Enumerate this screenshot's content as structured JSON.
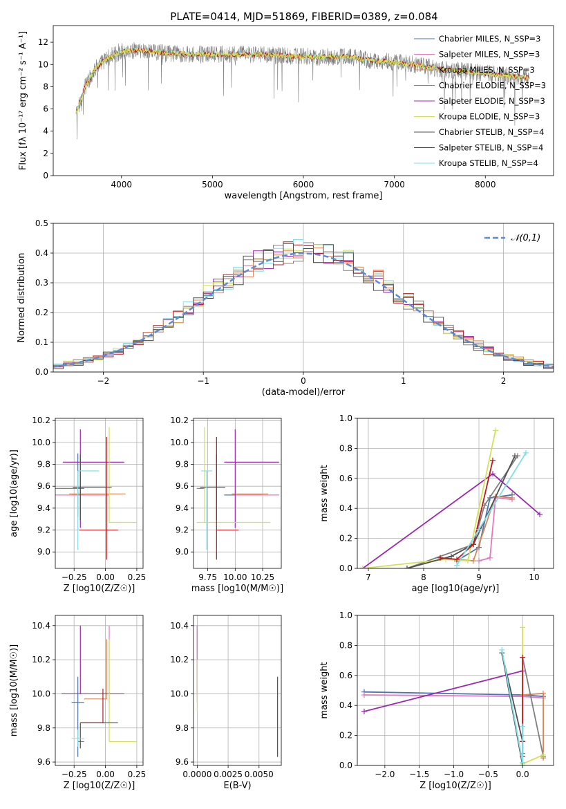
{
  "figure_title": "PLATE=0414, MJD=51869, FIBERID=0389, z=0.084",
  "models": [
    {
      "name": "Chabrier MILES",
      "nssp": "3",
      "color": "#4c72b0"
    },
    {
      "name": "Salpeter MILES",
      "nssp": "3",
      "color": "#e377c2"
    },
    {
      "name": "Kroupa MILES",
      "nssp": "3",
      "color": "#dd8452"
    },
    {
      "name": "Chabrier ELODIE",
      "nssp": "3",
      "color": "#7f7f7f"
    },
    {
      "name": "Salpeter ELODIE",
      "nssp": "3",
      "color": "#9c27b0"
    },
    {
      "name": "Kroupa ELODIE",
      "nssp": "3",
      "color": "#d4e157"
    },
    {
      "name": "Chabrier STELIB",
      "nssp": "4",
      "color": "#505050"
    },
    {
      "name": "Salpeter STELIB",
      "nssp": "4",
      "color": "#b71c1c"
    },
    {
      "name": "Kroupa STELIB",
      "nssp": "4",
      "color": "#80deea"
    }
  ],
  "chart_data": [
    {
      "id": "spectrum",
      "type": "line",
      "xlabel": "wavelength [Angstrom, rest frame]",
      "ylabel": "Flux [fλ 10⁻¹⁷ erg cm⁻² s⁻¹ A⁻¹]",
      "xlim": [
        3250,
        8750
      ],
      "ylim": [
        0,
        13.5
      ],
      "xticks": [
        4000,
        5000,
        6000,
        7000,
        8000
      ],
      "yticks": [
        0,
        2,
        4,
        6,
        8,
        10,
        12
      ],
      "x_data_range": [
        3500,
        8480
      ],
      "series": [
        {
          "name": "Chabrier ELODIE N_SSP=3",
          "role": "observed spectrum (grey)",
          "color": "#808080"
        },
        {
          "name": "Kroupa STELIB N_SSP=4",
          "color": "#80deea"
        },
        {
          "name": "Salpeter STELIB N_SSP=4",
          "color": "#b71c1c"
        },
        {
          "name": "Kroupa ELODIE N_SSP=3",
          "color": "#d4e157"
        }
      ],
      "continuum_profile": {
        "x": [
          3500,
          3600,
          3700,
          3800,
          3900,
          4000,
          4200,
          4500,
          5000,
          5500,
          6000,
          6500,
          6800,
          7000,
          7200,
          7500,
          8000,
          8480
        ],
        "y": [
          5.5,
          8.0,
          9.5,
          10.3,
          10.8,
          11.2,
          11.3,
          11.0,
          10.9,
          10.9,
          10.7,
          10.7,
          10.3,
          10.2,
          10.0,
          9.6,
          9.2,
          8.8
        ]
      },
      "legend_location": "upper right"
    },
    {
      "id": "residual-histogram",
      "type": "line",
      "style": "step histogram",
      "xlabel": "(data-model)/error",
      "ylabel": "Normed distribution",
      "xlim": [
        -2.5,
        2.5
      ],
      "ylim": [
        0,
        0.5
      ],
      "xticks": [
        -2,
        -1,
        0,
        1,
        2
      ],
      "yticks": [
        0,
        0.1,
        0.2,
        0.3,
        0.4,
        0.5
      ],
      "bin_width": 0.1,
      "reference": {
        "name": "𝒩(0,1)",
        "color": "#5b8bd6",
        "style": "dashed"
      },
      "legend_location": "upper right"
    },
    {
      "id": "age-vs-z",
      "type": "scatter",
      "style": "error bars",
      "xlabel": "Z [log10(Z/Z☉)]",
      "ylabel": "age [log10(age/yr)]",
      "xlim": [
        -0.4,
        0.3
      ],
      "ylim": [
        8.85,
        10.22
      ],
      "xticks": [
        -0.25,
        0.0,
        0.25
      ],
      "yticks": [
        9.0,
        9.2,
        9.4,
        9.6,
        9.8,
        10.0,
        10.2
      ],
      "points": [
        {
          "model": "Chabrier MILES",
          "x": -0.22,
          "xerr": [
            0.05,
            0.05
          ],
          "y": 9.52,
          "yerr": [
            0.2,
            0.38
          ]
        },
        {
          "model": "Salpeter MILES",
          "x": 0.03,
          "xerr": [
            0.45,
            0.0
          ],
          "y": 9.52,
          "yerr": [
            0.0,
            0.0
          ]
        },
        {
          "model": "Kroupa MILES",
          "x": 0.01,
          "xerr": [
            0.3,
            0.15
          ],
          "y": 9.53,
          "yerr": [
            0.0,
            0.0
          ]
        },
        {
          "model": "Chabrier ELODIE",
          "x": -0.22,
          "xerr": [
            0.18,
            0.05
          ],
          "y": 9.58,
          "yerr": [
            0.0,
            0.0
          ]
        },
        {
          "model": "Salpeter ELODIE",
          "x": -0.2,
          "xerr": [
            0.14,
            0.35
          ],
          "y": 9.82,
          "yerr": [
            0.6,
            0.3
          ]
        },
        {
          "model": "Kroupa ELODIE",
          "x": 0.03,
          "xerr": [
            0.0,
            0.22
          ],
          "y": 9.27,
          "yerr": [
            0.0,
            0.87
          ]
        },
        {
          "model": "Chabrier STELIB",
          "x": -0.2,
          "xerr": [
            0.06,
            0.25
          ],
          "y": 9.59,
          "yerr": [
            0.3,
            0.3
          ]
        },
        {
          "model": "Salpeter STELIB",
          "x": 0.01,
          "xerr": [
            0.22,
            0.09
          ],
          "y": 9.2,
          "yerr": [
            0.27,
            0.85
          ]
        },
        {
          "model": "Kroupa STELIB",
          "x": -0.22,
          "xerr": [
            0.0,
            0.17
          ],
          "y": 9.74,
          "yerr": [
            0.72,
            0.0
          ]
        }
      ]
    },
    {
      "id": "age-vs-mass",
      "type": "scatter",
      "style": "error bars",
      "xlabel": "mass [log10(M/M☉)]",
      "ylabel": "",
      "xlim": [
        9.62,
        10.42
      ],
      "ylim": [
        8.85,
        10.22
      ],
      "xticks": [
        9.75,
        10.0,
        10.25
      ],
      "yticks": [
        9.0,
        9.2,
        9.4,
        9.6,
        9.8,
        10.0,
        10.2
      ],
      "points": [
        {
          "model": "Chabrier MILES",
          "x": 9.95,
          "xerr": [
            0.05,
            0.3
          ],
          "y": 9.52,
          "yerr": [
            0.0,
            0.0
          ]
        },
        {
          "model": "Salpeter MILES",
          "x": 10.1,
          "xerr": [
            0.1,
            0.3
          ],
          "y": 9.52,
          "yerr": [
            0.0,
            0.0
          ]
        },
        {
          "model": "Kroupa MILES",
          "x": 9.97,
          "xerr": [
            0.0,
            0.33
          ],
          "y": 9.53,
          "yerr": [
            0.0,
            0.0
          ]
        },
        {
          "model": "Chabrier ELODIE",
          "x": 9.72,
          "xerr": [
            0.07,
            0.0
          ],
          "y": 9.58,
          "yerr": [
            0.0,
            0.0
          ]
        },
        {
          "model": "Salpeter ELODIE",
          "x": 10.0,
          "xerr": [
            0.1,
            0.4
          ],
          "y": 9.82,
          "yerr": [
            0.6,
            0.3
          ]
        },
        {
          "model": "Kroupa ELODIE",
          "x": 9.72,
          "xerr": [
            0.07,
            0.6
          ],
          "y": 9.27,
          "yerr": [
            0.0,
            0.87
          ]
        },
        {
          "model": "Chabrier STELIB",
          "x": 9.83,
          "xerr": [
            0.15,
            0.08
          ],
          "y": 9.59,
          "yerr": [
            0.3,
            0.3
          ]
        },
        {
          "model": "Salpeter STELIB",
          "x": 9.83,
          "xerr": [
            0.0,
            0.2
          ],
          "y": 9.2,
          "yerr": [
            0.27,
            0.85
          ]
        },
        {
          "model": "Kroupa STELIB",
          "x": 9.74,
          "xerr": [
            0.05,
            0.05
          ],
          "y": 9.74,
          "yerr": [
            0.72,
            0.0
          ]
        }
      ]
    },
    {
      "id": "mass-weight-vs-age",
      "type": "line",
      "xlabel": "age [log10(age/yr)]",
      "ylabel": "mass weight",
      "xlim": [
        6.8,
        10.35
      ],
      "ylim": [
        0,
        1.0
      ],
      "xticks": [
        7,
        8,
        9,
        10
      ],
      "yticks": [
        0.0,
        0.2,
        0.4,
        0.6,
        0.8,
        1.0
      ],
      "series": [
        {
          "name": "Chabrier MILES",
          "x": [
            8.6,
            9.0,
            9.2,
            9.6
          ],
          "y": [
            0.05,
            0.14,
            0.47,
            0.49
          ]
        },
        {
          "name": "Salpeter MILES",
          "x": [
            9.0,
            9.2,
            9.3,
            9.6
          ],
          "y": [
            0.05,
            0.07,
            0.47,
            0.46
          ]
        },
        {
          "name": "Kroupa MILES",
          "x": [
            8.3,
            8.9,
            9.3,
            9.6
          ],
          "y": [
            0.07,
            0.05,
            0.48,
            0.47
          ]
        },
        {
          "name": "Chabrier ELODIE",
          "x": [
            7.7,
            8.9,
            9.1,
            9.7
          ],
          "y": [
            0.0,
            0.16,
            0.42,
            0.75
          ]
        },
        {
          "name": "Salpeter ELODIE",
          "x": [
            6.9,
            9.25,
            10.1
          ],
          "y": [
            0.0,
            0.63,
            0.36
          ]
        },
        {
          "name": "Kroupa ELODIE",
          "x": [
            6.9,
            8.4,
            8.8,
            9.3
          ],
          "y": [
            0.0,
            0.06,
            0.05,
            0.92
          ]
        },
        {
          "name": "Chabrier STELIB",
          "x": [
            7.7,
            8.5,
            8.9,
            9.65
          ],
          "y": [
            0.0,
            0.08,
            0.16,
            0.75
          ]
        },
        {
          "name": "Salpeter STELIB",
          "x": [
            8.3,
            8.6,
            8.9,
            9.25
          ],
          "y": [
            0.07,
            0.06,
            0.16,
            0.72
          ]
        },
        {
          "name": "Kroupa STELIB",
          "x": [
            8.6,
            9.0,
            9.85
          ],
          "y": [
            0.02,
            0.26,
            0.77
          ]
        }
      ]
    },
    {
      "id": "mass-vs-z",
      "type": "scatter",
      "style": "error bars",
      "xlabel": "Z [log10(Z/Z☉)]",
      "ylabel": "mass [log10(M/M☉)]",
      "xlim": [
        -0.4,
        0.3
      ],
      "ylim": [
        9.58,
        10.46
      ],
      "xticks": [
        -0.25,
        0.0,
        0.25
      ],
      "yticks": [
        9.6,
        9.8,
        10.0,
        10.2,
        10.4
      ],
      "points": [
        {
          "model": "Chabrier MILES",
          "x": -0.22,
          "xerr": [
            0.05,
            0.05
          ],
          "y": 9.95,
          "yerr": [
            0.32,
            0.15
          ]
        },
        {
          "model": "Salpeter MILES",
          "x": 0.03,
          "xerr": [
            0.0,
            0.0
          ],
          "y": 10.1,
          "yerr": [
            0.15,
            0.3
          ]
        },
        {
          "model": "Kroupa MILES",
          "x": 0.01,
          "xerr": [
            0.18,
            0.0
          ],
          "y": 9.97,
          "yerr": [
            0.0,
            0.35
          ]
        },
        {
          "model": "Chabrier ELODIE",
          "x": -0.22,
          "xerr": [
            0.0,
            0.05
          ],
          "y": 9.72,
          "yerr": [
            0.0,
            0.0
          ]
        },
        {
          "model": "Salpeter ELODIE",
          "x": -0.2,
          "xerr": [
            0.15,
            0.35
          ],
          "y": 10.0,
          "yerr": [
            0.0,
            0.4
          ]
        },
        {
          "model": "Kroupa ELODIE",
          "x": 0.03,
          "xerr": [
            0.0,
            0.22
          ],
          "y": 9.72,
          "yerr": [
            0.0,
            0.6
          ]
        },
        {
          "model": "Chabrier STELIB",
          "x": -0.2,
          "xerr": [
            0.0,
            0.3
          ],
          "y": 9.83,
          "yerr": [
            0.15,
            0.0
          ]
        },
        {
          "model": "Salpeter STELIB",
          "x": -0.02,
          "xerr": [
            0.18,
            0.0
          ],
          "y": 9.83,
          "yerr": [
            0.0,
            0.2
          ]
        },
        {
          "model": "Kroupa STELIB",
          "x": -0.22,
          "xerr": [
            0.05,
            0.05
          ],
          "y": 9.74,
          "yerr": [
            0.05,
            0.05
          ]
        }
      ]
    },
    {
      "id": "mass-vs-ebv",
      "type": "scatter",
      "style": "error bars",
      "xlabel": "E(B-V)",
      "ylabel": "",
      "xlim": [
        -0.0003,
        0.0068
      ],
      "ylim": [
        9.58,
        10.46
      ],
      "xticks": [
        0.0,
        0.0025,
        0.005
      ],
      "yticks": [
        9.6,
        9.8,
        10.0,
        10.2,
        10.4
      ],
      "points": [
        {
          "model": "Salpeter ELODIE",
          "x": 0.0,
          "xerr": [
            0.0,
            0.0
          ],
          "y": 10.0,
          "yerr": [
            0.0,
            0.4
          ]
        },
        {
          "model": "Salpeter MILES",
          "x": 0.0,
          "xerr": [
            0.0,
            0.0
          ],
          "y": 10.1,
          "yerr": [
            0.15,
            0.3
          ]
        },
        {
          "model": "Kroupa ELODIE",
          "x": 0.0,
          "xerr": [
            0.0,
            0.0
          ],
          "y": 10.1,
          "yerr": [
            0.2,
            0.1
          ]
        },
        {
          "model": "Chabrier STELIB",
          "x": 0.0065,
          "xerr": [
            0.0,
            0.0
          ],
          "y": 9.83,
          "yerr": [
            0.2,
            0.27
          ]
        }
      ]
    },
    {
      "id": "mass-weight-vs-z",
      "type": "line",
      "xlabel": "Z [log10(Z/Z☉)]",
      "ylabel": "mass weight",
      "xlim": [
        -2.4,
        0.45
      ],
      "ylim": [
        0,
        1.0
      ],
      "xticks": [
        -2.0,
        -1.5,
        -1.0,
        -0.5,
        0.0
      ],
      "yticks": [
        0.0,
        0.2,
        0.4,
        0.6,
        0.8,
        1.0
      ],
      "series": [
        {
          "name": "Chabrier MILES",
          "x": [
            -2.3,
            0.0,
            0.3
          ],
          "y": [
            0.49,
            0.47,
            0.46
          ]
        },
        {
          "name": "Salpeter MILES",
          "x": [
            -2.3,
            0.0,
            0.3
          ],
          "y": [
            0.47,
            0.46,
            0.45
          ]
        },
        {
          "name": "Kroupa MILES",
          "x": [
            0.3,
            0.3,
            0.0
          ],
          "y": [
            0.05,
            0.48,
            0.47
          ]
        },
        {
          "name": "Chabrier ELODIE",
          "x": [
            0.0,
            0.0,
            0.3
          ],
          "y": [
            0.08,
            0.72,
            0.06
          ]
        },
        {
          "name": "Salpeter ELODIE",
          "x": [
            -2.3,
            0.0
          ],
          "y": [
            0.36,
            0.63
          ]
        },
        {
          "name": "Kroupa ELODIE",
          "x": [
            0.0,
            0.0,
            0.3
          ],
          "y": [
            0.92,
            0.01,
            0.07
          ]
        },
        {
          "name": "Chabrier STELIB",
          "x": [
            0.0,
            -0.3,
            0.0
          ],
          "y": [
            0.16,
            0.75,
            0.0
          ]
        },
        {
          "name": "Salpeter STELIB",
          "x": [
            0.0,
            0.0,
            0.0
          ],
          "y": [
            0.06,
            0.16,
            0.72
          ]
        },
        {
          "name": "Kroupa STELIB",
          "x": [
            -0.3,
            0.0,
            0.0
          ],
          "y": [
            0.77,
            0.02,
            0.26
          ]
        }
      ]
    }
  ]
}
